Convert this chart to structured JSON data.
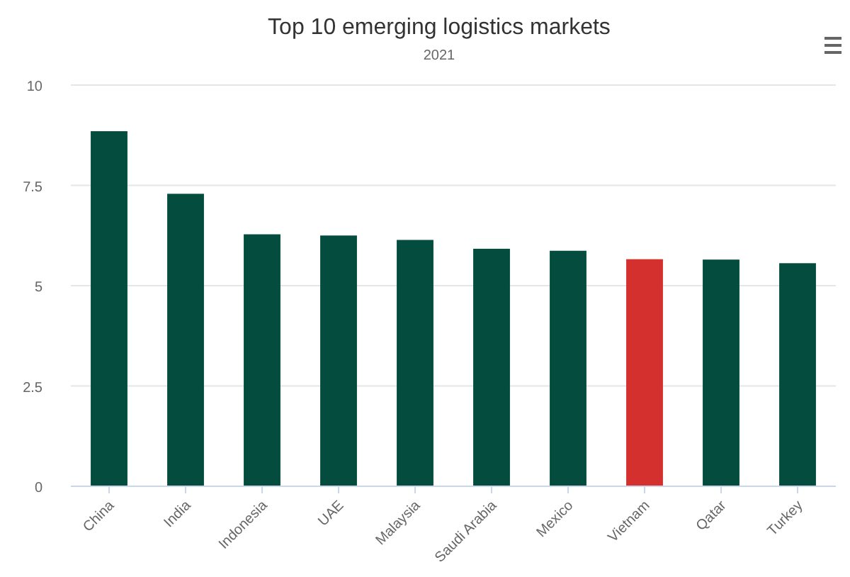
{
  "chart_data": {
    "type": "bar",
    "title": "Top 10 emerging logistics markets",
    "subtitle": "2021",
    "categories": [
      "China",
      "India",
      "Indonesia",
      "UAE",
      "Malaysia",
      "Saudi Arabia",
      "Mexico",
      "Vietnam",
      "Qatar",
      "Turkey"
    ],
    "values": [
      8.85,
      7.29,
      6.28,
      6.25,
      6.14,
      5.92,
      5.87,
      5.66,
      5.65,
      5.56
    ],
    "colors": [
      "#034c3e",
      "#034c3e",
      "#034c3e",
      "#034c3e",
      "#034c3e",
      "#034c3e",
      "#034c3e",
      "#d3302e",
      "#034c3e",
      "#034c3e"
    ],
    "ylim": [
      0,
      10
    ],
    "yticks": [
      0,
      {
        "value": 2.5,
        "label": "2.5"
      },
      5,
      {
        "value": 7.5,
        "label": "7.5"
      },
      10
    ],
    "grid": "y"
  }
}
